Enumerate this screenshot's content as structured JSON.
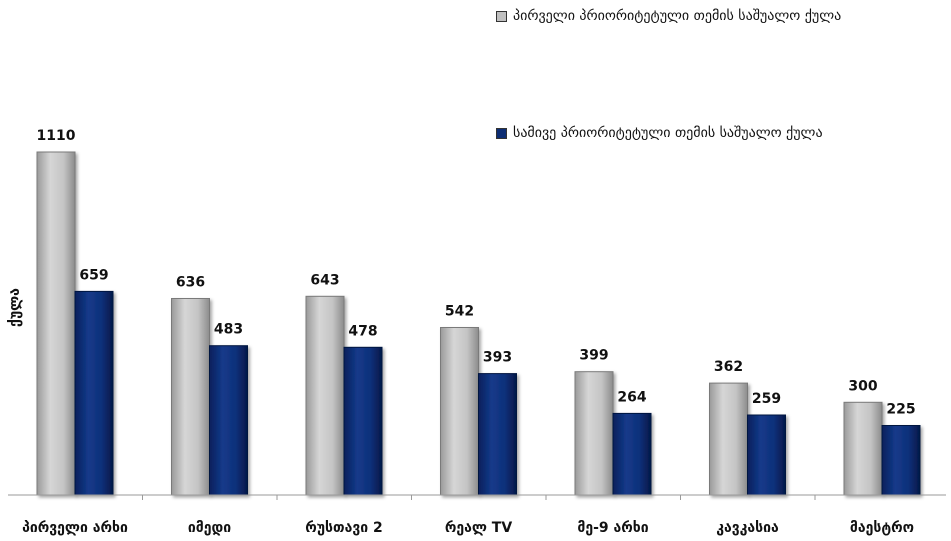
{
  "chart_data": {
    "type": "bar",
    "title": "",
    "xlabel": "",
    "ylabel": "ქულა",
    "categories": [
      "პირველი არხი",
      "იმედი",
      "რუსთავი 2",
      "რეალ TV",
      "მე-9 არხი",
      "კავკასია",
      "მაესტრო"
    ],
    "series": [
      {
        "name": "პირველი პრიორიტეტული თემის საშუალო ქულა",
        "color": "#c0c0c0",
        "values": [
          1110,
          636,
          643,
          542,
          399,
          362,
          300
        ]
      },
      {
        "name": "სამივე პრიორიტეტული თემის საშუალო ქულა",
        "color": "#0d2d73",
        "values": [
          659,
          483,
          478,
          393,
          264,
          259,
          225
        ]
      }
    ],
    "ylim": [
      0,
      1110
    ],
    "grid": false,
    "legend": "top-right",
    "data_labels": true
  }
}
